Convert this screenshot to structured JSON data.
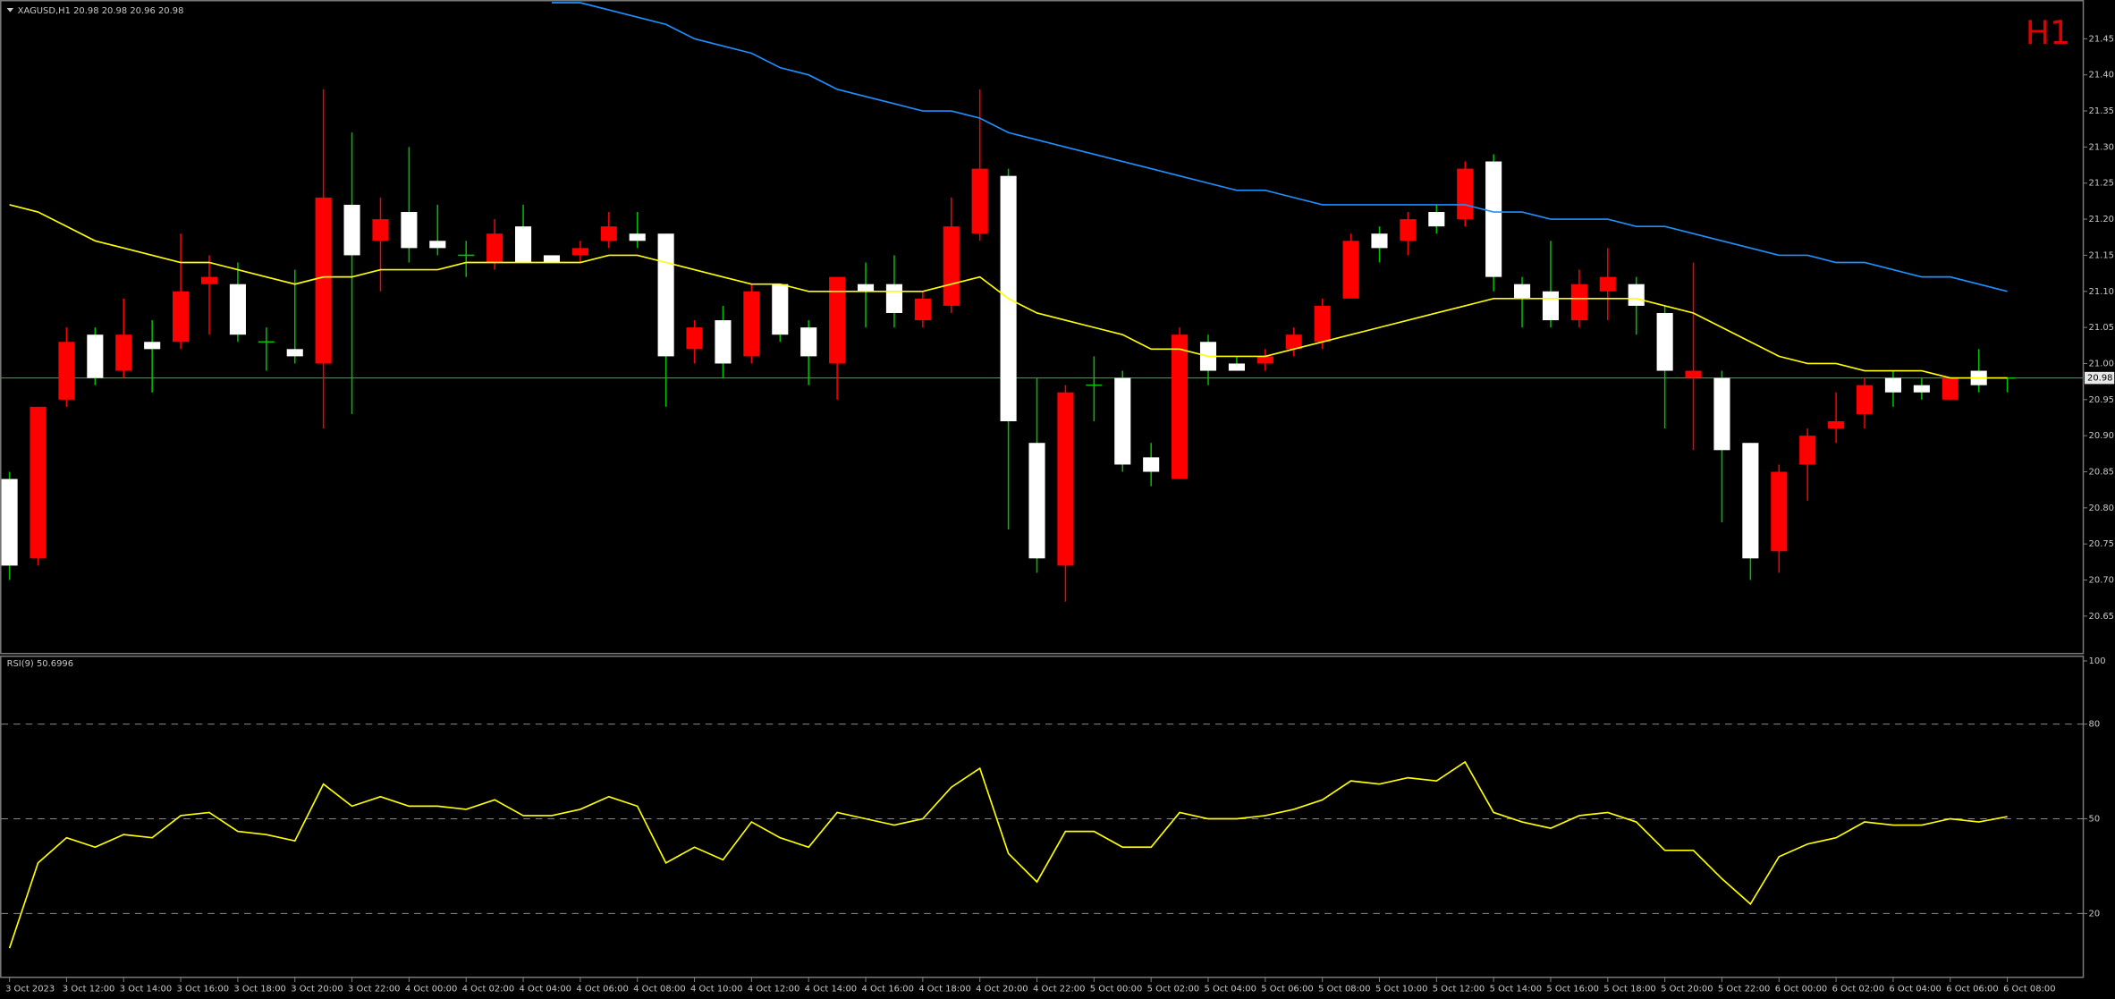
{
  "chart_data": [
    {
      "type": "candlestick",
      "title": "XAGUSD,H1  20.98 20.98 20.96 20.98",
      "timeframe": "H1",
      "categories": [
        "3 Oct 2023",
        null,
        "3 Oct 12:00",
        null,
        "3 Oct 14:00",
        null,
        "3 Oct 16:00",
        null,
        "3 Oct 18:00",
        null,
        "3 Oct 20:00",
        null,
        "3 Oct 22:00",
        null,
        "4 Oct 00:00",
        null,
        "4 Oct 02:00",
        null,
        "4 Oct 04:00",
        null,
        "4 Oct 06:00",
        null,
        "4 Oct 08:00",
        null,
        "4 Oct 10:00",
        null,
        "4 Oct 12:00",
        null,
        "4 Oct 14:00",
        null,
        "4 Oct 16:00",
        null,
        "4 Oct 18:00",
        null,
        "4 Oct 20:00",
        null,
        "4 Oct 22:00",
        null,
        "5 Oct 00:00",
        null,
        "5 Oct 02:00",
        null,
        "5 Oct 04:00",
        null,
        "5 Oct 06:00",
        null,
        "5 Oct 08:00",
        null,
        "5 Oct 10:00",
        null,
        "5 Oct 12:00",
        null,
        "5 Oct 14:00",
        null,
        "5 Oct 16:00",
        null,
        "5 Oct 18:00",
        null,
        "5 Oct 20:00",
        null,
        "5 Oct 22:00",
        null,
        "6 Oct 00:00",
        null,
        "6 Oct 02:00",
        null,
        "6 Oct 04:00",
        null,
        "6 Oct 06:00",
        null,
        "6 Oct 08:00"
      ],
      "open": [
        20.72,
        20.94,
        21.03,
        20.98,
        21.04,
        21.02,
        21.1,
        21.12,
        21.04,
        21.03,
        21.01,
        21.23,
        21.15,
        21.2,
        21.16,
        21.16,
        21.15,
        21.18,
        21.14,
        21.14,
        21.16,
        21.19,
        21.17,
        21.01,
        21.05,
        21.0,
        21.1,
        21.04,
        21.01,
        21.12,
        21.1,
        21.07,
        21.09,
        21.19,
        21.27,
        20.92,
        20.73,
        20.96,
        20.97,
        20.86,
        20.85,
        21.04,
        20.99,
        20.99,
        21.01,
        21.04,
        21.08,
        21.17,
        21.16,
        21.2,
        21.19,
        21.27,
        21.12,
        21.09,
        21.06,
        21.11,
        21.12,
        21.08,
        20.99,
        20.99,
        20.88,
        20.73,
        20.85,
        20.9,
        20.92,
        20.97,
        20.96,
        20.96,
        20.98,
        20.97,
        20.98
      ],
      "high": [
        20.85,
        20.94,
        21.05,
        21.05,
        21.09,
        21.06,
        21.18,
        21.15,
        21.14,
        21.05,
        21.13,
        21.38,
        21.32,
        21.23,
        21.3,
        21.22,
        21.17,
        21.2,
        21.22,
        21.15,
        21.17,
        21.21,
        21.21,
        21.18,
        21.06,
        21.08,
        21.11,
        21.11,
        21.06,
        21.12,
        21.14,
        21.15,
        21.1,
        21.23,
        21.38,
        21.27,
        20.98,
        20.97,
        21.01,
        20.99,
        20.89,
        21.05,
        21.04,
        21.01,
        21.02,
        21.05,
        21.09,
        21.18,
        21.19,
        21.21,
        21.22,
        21.28,
        21.29,
        21.12,
        21.17,
        21.13,
        21.16,
        21.12,
        21.08,
        21.14,
        20.99,
        20.89,
        20.86,
        20.91,
        20.96,
        20.98,
        20.99,
        20.98,
        20.98,
        21.02,
        20.98
      ],
      "low": [
        20.7,
        20.72,
        20.94,
        20.97,
        20.98,
        20.96,
        21.02,
        21.04,
        21.03,
        20.99,
        21.0,
        20.91,
        20.93,
        21.1,
        21.14,
        21.15,
        21.12,
        21.13,
        21.14,
        21.14,
        21.14,
        21.16,
        21.16,
        20.94,
        21.0,
        20.98,
        21.0,
        21.03,
        20.97,
        20.95,
        21.05,
        21.05,
        21.05,
        21.07,
        21.17,
        20.77,
        20.71,
        20.67,
        20.92,
        20.85,
        20.83,
        20.84,
        20.97,
        20.99,
        20.99,
        21.01,
        21.02,
        21.09,
        21.14,
        21.15,
        21.18,
        21.19,
        21.1,
        21.05,
        21.05,
        21.05,
        21.06,
        21.04,
        20.91,
        20.88,
        20.78,
        20.7,
        20.71,
        20.81,
        20.89,
        20.91,
        20.94,
        20.95,
        20.95,
        20.96,
        20.96
      ],
      "close": [
        20.84,
        20.73,
        20.95,
        21.04,
        20.99,
        21.03,
        21.03,
        21.11,
        21.11,
        21.03,
        21.02,
        21.0,
        21.22,
        21.17,
        21.21,
        21.17,
        21.15,
        21.14,
        21.19,
        21.15,
        21.15,
        21.17,
        21.18,
        21.18,
        21.02,
        21.06,
        21.01,
        21.11,
        21.05,
        21.0,
        21.11,
        21.11,
        21.06,
        21.08,
        21.18,
        21.26,
        20.89,
        20.72,
        20.97,
        20.98,
        20.87,
        20.84,
        21.03,
        21.0,
        21.0,
        21.02,
        21.03,
        21.09,
        21.18,
        21.17,
        21.21,
        21.2,
        21.28,
        21.11,
        21.1,
        21.06,
        21.1,
        21.11,
        21.07,
        20.98,
        20.98,
        20.89,
        20.74,
        20.86,
        20.91,
        20.93,
        20.98,
        20.97,
        20.95,
        20.99,
        20.98
      ],
      "bull_color": "#ffffff",
      "bear_color": "#ff0000",
      "bull_wick_color": "#00c000",
      "bear_wick_color": "#ff0000",
      "lines": [
        {
          "color": "#ffff00",
          "values": [
            21.22,
            21.21,
            21.19,
            21.17,
            21.16,
            21.15,
            21.14,
            21.14,
            21.13,
            21.12,
            21.11,
            21.12,
            21.12,
            21.13,
            21.13,
            21.13,
            21.14,
            21.14,
            21.14,
            21.14,
            21.14,
            21.15,
            21.15,
            21.14,
            21.13,
            21.12,
            21.11,
            21.11,
            21.1,
            21.1,
            21.1,
            21.1,
            21.1,
            21.11,
            21.12,
            21.09,
            21.07,
            21.06,
            21.05,
            21.04,
            21.02,
            21.02,
            21.01,
            21.01,
            21.01,
            21.02,
            21.03,
            21.04,
            21.05,
            21.06,
            21.07,
            21.08,
            21.09,
            21.09,
            21.09,
            21.09,
            21.09,
            21.09,
            21.08,
            21.07,
            21.05,
            21.03,
            21.01,
            21.0,
            21.0,
            20.99,
            20.99,
            20.99,
            20.98,
            20.98,
            20.98
          ]
        },
        {
          "color": "#1e90ff",
          "values": [
            null,
            null,
            null,
            null,
            null,
            null,
            null,
            null,
            null,
            null,
            null,
            null,
            null,
            null,
            null,
            null,
            null,
            null,
            null,
            21.5,
            21.5,
            21.49,
            21.48,
            21.47,
            21.45,
            21.44,
            21.43,
            21.41,
            21.4,
            21.38,
            21.37,
            21.36,
            21.35,
            21.35,
            21.34,
            21.32,
            21.31,
            21.3,
            21.29,
            21.28,
            21.27,
            21.26,
            21.25,
            21.24,
            21.24,
            21.23,
            21.22,
            21.22,
            21.22,
            21.22,
            21.22,
            21.22,
            21.21,
            21.21,
            21.2,
            21.2,
            21.2,
            21.19,
            21.19,
            21.18,
            21.17,
            21.16,
            21.15,
            21.15,
            21.14,
            21.14,
            21.13,
            21.12,
            21.12,
            21.11,
            21.1
          ]
        }
      ],
      "ylim": [
        20.6,
        21.5
      ],
      "yticks": [
        20.65,
        {
          "value": 20.7,
          "label": "20.70"
        },
        20.75,
        {
          "value": 20.8,
          "label": "20.80"
        },
        20.85,
        {
          "value": 20.9,
          "label": "20.90"
        },
        20.95,
        {
          "value": 21,
          "label": "21.00"
        },
        21.05,
        {
          "value": 21.1,
          "label": "21.10"
        },
        21.15,
        {
          "value": 21.2,
          "label": "21.20"
        },
        21.25,
        {
          "value": 21.3,
          "label": "21.30"
        },
        21.35,
        {
          "value": 21.4,
          "label": "21.40"
        },
        21.45
      ],
      "grid": false
    },
    {
      "type": "line",
      "title": "RSI(9) 50.6996",
      "color": "#ffff00",
      "values": [
        9,
        36,
        44,
        41,
        45,
        44,
        51,
        52,
        46,
        45,
        43,
        61,
        54,
        57,
        54,
        54,
        53,
        56,
        51,
        51,
        53,
        57,
        54,
        36,
        41,
        37,
        49,
        44,
        41,
        52,
        50,
        48,
        50,
        60,
        66,
        39,
        30,
        46,
        46,
        41,
        41,
        52,
        50,
        50,
        51,
        53,
        56,
        62,
        61,
        63,
        62,
        68,
        52,
        49,
        47,
        51,
        52,
        49,
        40,
        40,
        31,
        23,
        38,
        42,
        44,
        49,
        48,
        48,
        50,
        49,
        50.6996
      ],
      "ylim": [
        0,
        100
      ],
      "yticks": [
        100,
        80,
        50,
        20
      ],
      "grid": "dashed"
    }
  ]
}
